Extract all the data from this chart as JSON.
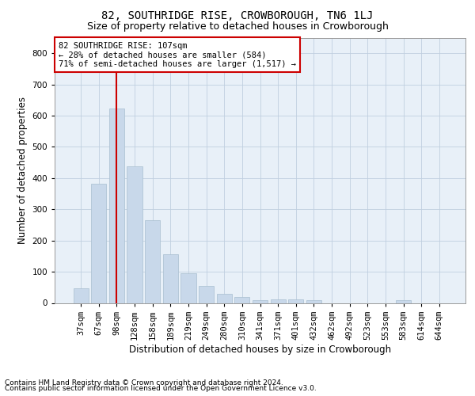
{
  "title": "82, SOUTHRIDGE RISE, CROWBOROUGH, TN6 1LJ",
  "subtitle": "Size of property relative to detached houses in Crowborough",
  "xlabel": "Distribution of detached houses by size in Crowborough",
  "ylabel": "Number of detached properties",
  "footnote1": "Contains HM Land Registry data © Crown copyright and database right 2024.",
  "footnote2": "Contains public sector information licensed under the Open Government Licence v3.0.",
  "annotation_line1": "82 SOUTHRIDGE RISE: 107sqm",
  "annotation_line2": "← 28% of detached houses are smaller (584)",
  "annotation_line3": "71% of semi-detached houses are larger (1,517) →",
  "bar_color": "#c8d8ea",
  "bar_edge_color": "#a8bfd0",
  "vline_color": "#cc0000",
  "annotation_box_edge_color": "#cc0000",
  "background_color": "#ffffff",
  "plot_bg_color": "#e8f0f8",
  "grid_color": "#c0cfe0",
  "categories": [
    "37sqm",
    "67sqm",
    "98sqm",
    "128sqm",
    "158sqm",
    "189sqm",
    "219sqm",
    "249sqm",
    "280sqm",
    "310sqm",
    "341sqm",
    "371sqm",
    "401sqm",
    "432sqm",
    "462sqm",
    "492sqm",
    "523sqm",
    "553sqm",
    "583sqm",
    "614sqm",
    "644sqm"
  ],
  "values": [
    47,
    383,
    622,
    438,
    265,
    155,
    95,
    55,
    28,
    18,
    10,
    12,
    12,
    10,
    0,
    0,
    0,
    0,
    8,
    0,
    0
  ],
  "ylim": [
    0,
    850
  ],
  "yticks": [
    0,
    100,
    200,
    300,
    400,
    500,
    600,
    700,
    800
  ],
  "vline_x_index": 2.0,
  "title_fontsize": 10,
  "subtitle_fontsize": 9,
  "axis_label_fontsize": 8.5,
  "tick_fontsize": 7.5,
  "annotation_fontsize": 7.5,
  "footnote_fontsize": 6.5,
  "bar_width": 0.85
}
